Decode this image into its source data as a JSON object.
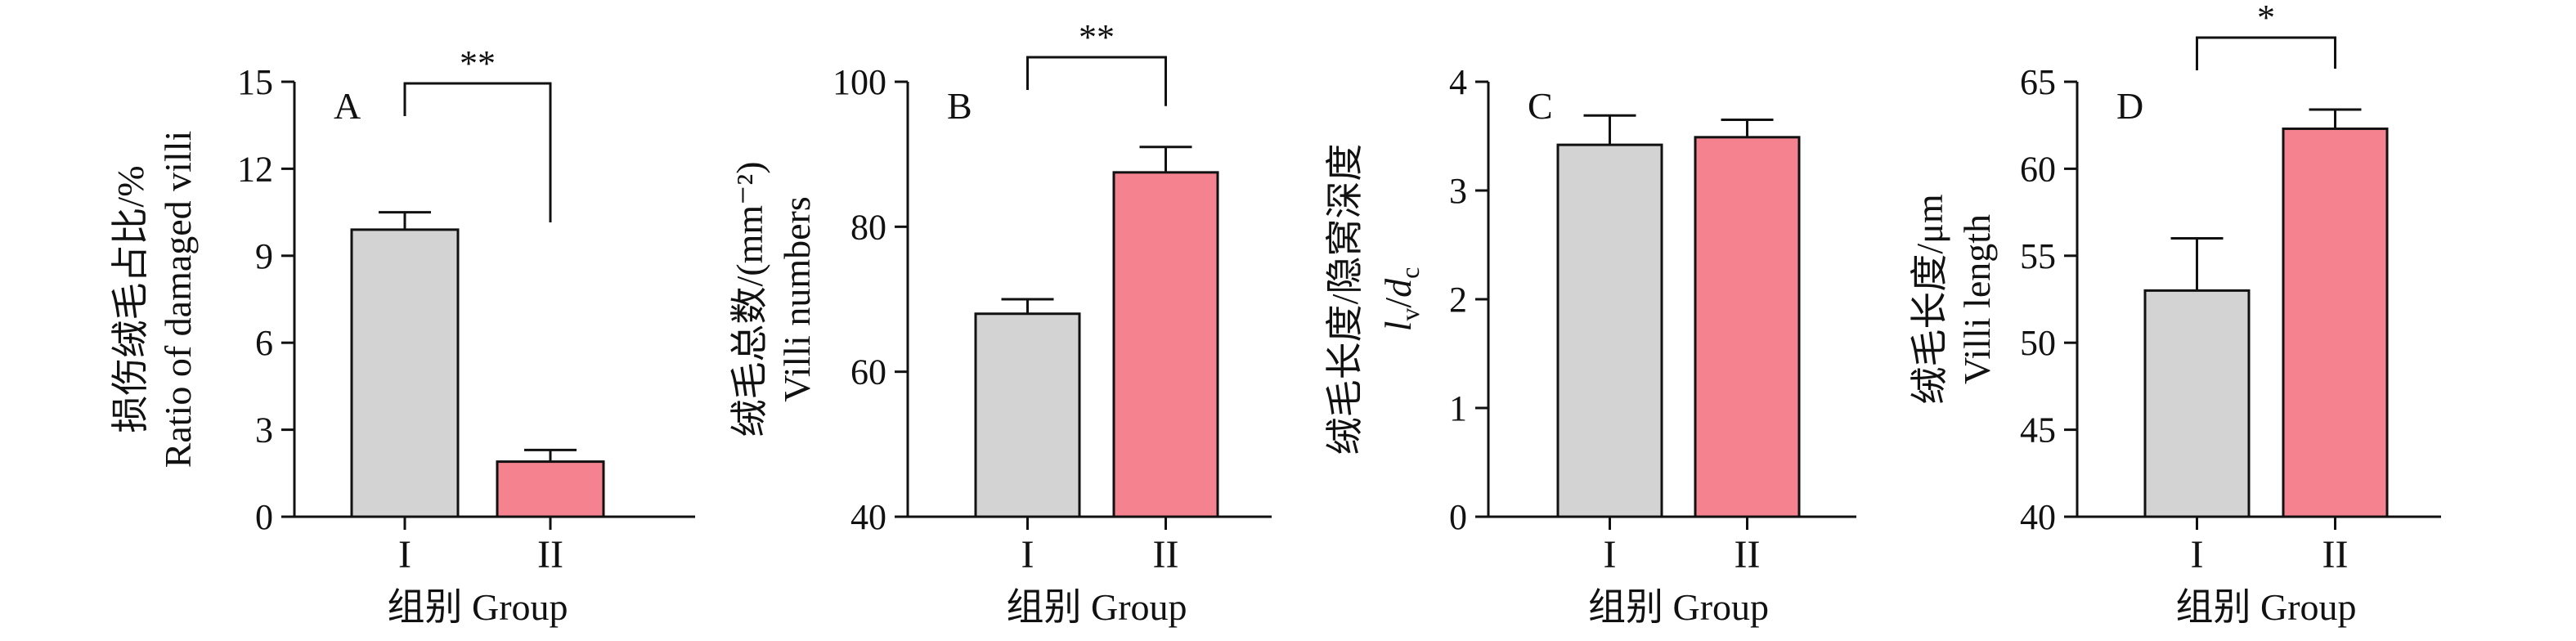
{
  "figure": {
    "x_axis_title": "组别 Group",
    "colors": {
      "group_I": "#d3d3d3",
      "group_II": "#f4838f",
      "axis": "#111111"
    }
  },
  "chart_data": [
    {
      "type": "bar",
      "panel": "A",
      "categories": [
        "I",
        "II"
      ],
      "values": [
        9.9,
        1.9
      ],
      "errors": [
        0.6,
        0.4
      ],
      "ylim": [
        0,
        15
      ],
      "yticks": [
        0,
        3,
        6,
        9,
        12,
        15
      ],
      "ylabel_lines": [
        "损伤绒毛占比/%",
        "Ratio of damaged villi"
      ],
      "xlabel": "组别 Group",
      "significance": [
        {
          "label": "**",
          "from": 0,
          "to": 1
        }
      ],
      "grid": false
    },
    {
      "type": "bar",
      "panel": "B",
      "categories": [
        "I",
        "II"
      ],
      "values": [
        68,
        87.5
      ],
      "errors": [
        2,
        3.5
      ],
      "ylim": [
        40,
        100
      ],
      "yticks": [
        40,
        60,
        80,
        100
      ],
      "ylabel_lines": [
        "绒毛总数/(mm⁻²)",
        "Villi numbers"
      ],
      "xlabel": "组别 Group",
      "significance": [
        {
          "label": "**",
          "from": 0,
          "to": 1
        }
      ],
      "grid": false
    },
    {
      "type": "bar",
      "panel": "C",
      "categories": [
        "I",
        "II"
      ],
      "values": [
        3.42,
        3.49
      ],
      "errors": [
        0.27,
        0.16
      ],
      "ylim": [
        0,
        4
      ],
      "yticks": [
        0,
        1,
        2,
        3,
        4
      ],
      "ylabel_lines": [
        "绒毛长度/隐窝深度",
        "lv/dc"
      ],
      "xlabel": "组别 Group",
      "significance": [],
      "grid": false
    },
    {
      "type": "bar",
      "panel": "D",
      "categories": [
        "I",
        "II"
      ],
      "values": [
        53,
        62.3
      ],
      "errors": [
        3,
        1.1
      ],
      "ylim": [
        40,
        65
      ],
      "yticks": [
        40,
        45,
        50,
        55,
        60,
        65
      ],
      "ylabel_lines": [
        "绒毛长度/μm",
        "Villi length"
      ],
      "xlabel": "组别 Group",
      "significance": [
        {
          "label": "*",
          "from": 0,
          "to": 1
        }
      ],
      "grid": false
    }
  ]
}
